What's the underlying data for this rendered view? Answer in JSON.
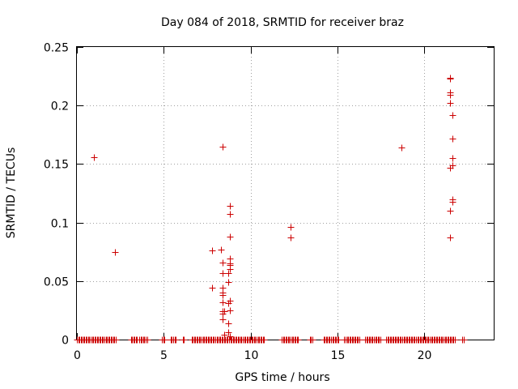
{
  "chart_data": {
    "type": "scatter",
    "title": "Day 084 of 2018, SRMTID for receiver braz",
    "xlabel": "GPS time / hours",
    "ylabel": "SRMTID / TECUs",
    "xlim": [
      0,
      24
    ],
    "ylim": [
      0,
      0.25
    ],
    "xticks": [
      0,
      5,
      10,
      15,
      20
    ],
    "xtick_labels": [
      "0",
      "5",
      "10",
      "15",
      "20"
    ],
    "yticks": [
      0,
      0.05,
      0.1,
      0.15,
      0.2,
      0.25
    ],
    "ytick_labels": [
      "0",
      "0.05",
      "0.1",
      "0.15",
      "0.2",
      "0.25"
    ],
    "grid": true,
    "marker": "+",
    "color": "#cc0000",
    "series": [
      {
        "name": "SRMTID",
        "points": [
          [
            1.0,
            0.156
          ],
          [
            2.2,
            0.075
          ],
          [
            7.8,
            0.076
          ],
          [
            7.8,
            0.044
          ],
          [
            8.3,
            0.077
          ],
          [
            8.4,
            0.165
          ],
          [
            8.4,
            0.066
          ],
          [
            8.4,
            0.057
          ],
          [
            8.4,
            0.044
          ],
          [
            8.4,
            0.04
          ],
          [
            8.4,
            0.038
          ],
          [
            8.4,
            0.032
          ],
          [
            8.4,
            0.024
          ],
          [
            8.4,
            0.022
          ],
          [
            8.4,
            0.017
          ],
          [
            8.5,
            0.024
          ],
          [
            8.5,
            0.004
          ],
          [
            8.7,
            0.057
          ],
          [
            8.7,
            0.049
          ],
          [
            8.7,
            0.031
          ],
          [
            8.7,
            0.014
          ],
          [
            8.7,
            0.006
          ],
          [
            8.8,
            0.114
          ],
          [
            8.8,
            0.107
          ],
          [
            8.8,
            0.088
          ],
          [
            8.8,
            0.069
          ],
          [
            8.8,
            0.065
          ],
          [
            8.8,
            0.064
          ],
          [
            8.8,
            0.06
          ],
          [
            8.8,
            0.033
          ],
          [
            8.8,
            0.025
          ],
          [
            8.8,
            0.003
          ],
          [
            12.3,
            0.096
          ],
          [
            12.3,
            0.087
          ],
          [
            18.7,
            0.164
          ],
          [
            21.5,
            0.224
          ],
          [
            21.5,
            0.223
          ],
          [
            21.5,
            0.211
          ],
          [
            21.5,
            0.209
          ],
          [
            21.5,
            0.202
          ],
          [
            21.5,
            0.147
          ],
          [
            21.5,
            0.11
          ],
          [
            21.5,
            0.087
          ],
          [
            21.6,
            0.192
          ],
          [
            21.6,
            0.172
          ],
          [
            21.6,
            0.155
          ],
          [
            21.6,
            0.149
          ],
          [
            21.6,
            0.12
          ],
          [
            21.6,
            0.118
          ]
        ],
        "zero_ranges_hours": [
          [
            0.0,
            2.3
          ],
          [
            3.1,
            3.5
          ],
          [
            3.6,
            4.1
          ],
          [
            4.9,
            5.1
          ],
          [
            5.4,
            5.7
          ],
          [
            6.1,
            6.2
          ],
          [
            6.6,
            10.8
          ],
          [
            11.8,
            12.8
          ],
          [
            13.4,
            13.6
          ],
          [
            14.2,
            15.1
          ],
          [
            15.4,
            16.3
          ],
          [
            16.6,
            17.5
          ],
          [
            17.8,
            21.8
          ],
          [
            22.2,
            22.3
          ]
        ]
      }
    ]
  }
}
